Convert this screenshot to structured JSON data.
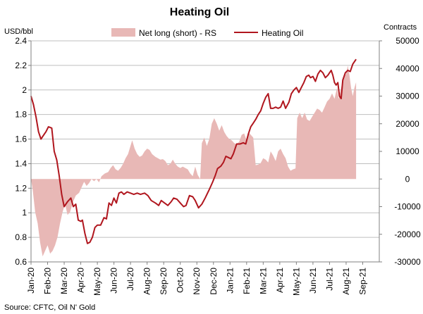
{
  "chart_data": {
    "type": "line+area",
    "title": "Heating Oil",
    "left_unit": "USD/bbl",
    "right_unit": "Contracts",
    "source": "Source: CFTC, Oil N' Gold",
    "legend": {
      "area_label": "Net long (short) - RS",
      "line_label": "Heating Oil"
    },
    "colors": {
      "area": "#e8b8b6",
      "line": "#b0161e",
      "grid": "#bfbfbf",
      "axis": "#808080"
    },
    "left_axis": {
      "min": 0.6,
      "max": 2.4,
      "step": 0.2,
      "tick_labels": [
        "0.6",
        "0.8",
        "1",
        "1.2",
        "1.4",
        "1.6",
        "1.8",
        "2",
        "2.2",
        "2.4"
      ]
    },
    "right_axis": {
      "min": -30000,
      "max": 50000,
      "step": 10000,
      "tick_labels": [
        "-30000",
        "-20000",
        "-10000",
        "0",
        "10000",
        "20000",
        "30000",
        "40000",
        "50000"
      ]
    },
    "x_axis": {
      "start": "2020-01-01",
      "end": "2021-09-30",
      "tick_labels": [
        "Jan-20",
        "Feb-20",
        "Mar-20",
        "Apr-20",
        "May-20",
        "Jun-20",
        "Jul-20",
        "Aug-20",
        "Sep-20",
        "Oct-20",
        "Nov-20",
        "Dec-20",
        "Jan-21",
        "Feb-21",
        "Mar-21",
        "Apr-21",
        "May-21",
        "Jun-21",
        "Jul-21",
        "Aug-21",
        "Sep-21"
      ]
    },
    "series": [
      {
        "name": "Heating Oil",
        "axis": "left",
        "kind": "line",
        "points": [
          [
            0.0,
            1.95
          ],
          [
            0.15,
            1.88
          ],
          [
            0.3,
            1.78
          ],
          [
            0.45,
            1.66
          ],
          [
            0.6,
            1.6
          ],
          [
            0.75,
            1.63
          ],
          [
            0.9,
            1.66
          ],
          [
            1.05,
            1.7
          ],
          [
            1.25,
            1.69
          ],
          [
            1.4,
            1.5
          ],
          [
            1.55,
            1.43
          ],
          [
            1.7,
            1.3
          ],
          [
            1.85,
            1.15
          ],
          [
            2.0,
            1.05
          ],
          [
            2.2,
            1.09
          ],
          [
            2.4,
            1.12
          ],
          [
            2.55,
            1.05
          ],
          [
            2.7,
            1.07
          ],
          [
            2.85,
            0.94
          ],
          [
            3.0,
            0.93
          ],
          [
            3.1,
            0.94
          ],
          [
            3.25,
            0.83
          ],
          [
            3.4,
            0.75
          ],
          [
            3.55,
            0.76
          ],
          [
            3.7,
            0.8
          ],
          [
            3.85,
            0.88
          ],
          [
            4.0,
            0.9
          ],
          [
            4.2,
            0.9
          ],
          [
            4.4,
            0.96
          ],
          [
            4.55,
            0.95
          ],
          [
            4.7,
            1.08
          ],
          [
            4.85,
            1.06
          ],
          [
            5.0,
            1.12
          ],
          [
            5.15,
            1.08
          ],
          [
            5.3,
            1.16
          ],
          [
            5.45,
            1.17
          ],
          [
            5.6,
            1.15
          ],
          [
            5.8,
            1.17
          ],
          [
            6.0,
            1.16
          ],
          [
            6.2,
            1.15
          ],
          [
            6.4,
            1.16
          ],
          [
            6.6,
            1.15
          ],
          [
            6.85,
            1.16
          ],
          [
            7.05,
            1.14
          ],
          [
            7.25,
            1.1
          ],
          [
            7.5,
            1.08
          ],
          [
            7.7,
            1.06
          ],
          [
            7.85,
            1.1
          ],
          [
            8.05,
            1.08
          ],
          [
            8.25,
            1.06
          ],
          [
            8.45,
            1.09
          ],
          [
            8.6,
            1.12
          ],
          [
            8.8,
            1.11
          ],
          [
            9.0,
            1.08
          ],
          [
            9.2,
            1.05
          ],
          [
            9.35,
            1.06
          ],
          [
            9.55,
            1.14
          ],
          [
            9.75,
            1.13
          ],
          [
            9.9,
            1.1
          ],
          [
            10.1,
            1.04
          ],
          [
            10.3,
            1.07
          ],
          [
            10.5,
            1.12
          ],
          [
            10.75,
            1.19
          ],
          [
            10.95,
            1.25
          ],
          [
            11.1,
            1.3
          ],
          [
            11.25,
            1.36
          ],
          [
            11.45,
            1.38
          ],
          [
            11.6,
            1.41
          ],
          [
            11.75,
            1.46
          ],
          [
            11.9,
            1.45
          ],
          [
            12.05,
            1.44
          ],
          [
            12.2,
            1.48
          ],
          [
            12.4,
            1.56
          ],
          [
            12.6,
            1.56
          ],
          [
            12.8,
            1.57
          ],
          [
            12.95,
            1.56
          ],
          [
            13.1,
            1.64
          ],
          [
            13.25,
            1.7
          ],
          [
            13.4,
            1.73
          ],
          [
            13.55,
            1.76
          ],
          [
            13.7,
            1.8
          ],
          [
            13.85,
            1.83
          ],
          [
            14.0,
            1.89
          ],
          [
            14.15,
            1.94
          ],
          [
            14.3,
            1.97
          ],
          [
            14.45,
            1.85
          ],
          [
            14.6,
            1.85
          ],
          [
            14.75,
            1.86
          ],
          [
            14.9,
            1.85
          ],
          [
            15.05,
            1.86
          ],
          [
            15.2,
            1.91
          ],
          [
            15.35,
            1.85
          ],
          [
            15.55,
            1.9
          ],
          [
            15.7,
            1.97
          ],
          [
            15.85,
            2.0
          ],
          [
            16.0,
            2.02
          ],
          [
            16.15,
            1.98
          ],
          [
            16.3,
            2.02
          ],
          [
            16.45,
            2.06
          ],
          [
            16.6,
            2.11
          ],
          [
            16.75,
            2.12
          ],
          [
            16.85,
            2.1
          ],
          [
            17.0,
            2.11
          ],
          [
            17.15,
            2.07
          ],
          [
            17.3,
            2.13
          ],
          [
            17.45,
            2.16
          ],
          [
            17.6,
            2.14
          ],
          [
            17.75,
            2.1
          ],
          [
            17.9,
            2.12
          ],
          [
            18.0,
            2.14
          ],
          [
            18.1,
            2.16
          ],
          [
            18.2,
            2.12
          ],
          [
            18.3,
            2.06
          ],
          [
            18.4,
            2.04
          ],
          [
            18.5,
            2.06
          ],
          [
            18.6,
            1.95
          ],
          [
            18.7,
            1.93
          ],
          [
            18.8,
            2.08
          ],
          [
            18.95,
            2.14
          ],
          [
            19.1,
            2.16
          ],
          [
            19.25,
            2.15
          ],
          [
            19.4,
            2.21
          ],
          [
            19.55,
            2.24
          ],
          [
            19.6,
            2.25
          ]
        ]
      },
      {
        "name": "Net long (short) - RS",
        "axis": "right",
        "kind": "area",
        "points": [
          [
            0.0,
            0
          ],
          [
            0.1,
            -4000
          ],
          [
            0.25,
            -12000
          ],
          [
            0.4,
            -16000
          ],
          [
            0.55,
            -23000
          ],
          [
            0.7,
            -28000
          ],
          [
            0.85,
            -26000
          ],
          [
            1.0,
            -24000
          ],
          [
            1.15,
            -27000
          ],
          [
            1.3,
            -26000
          ],
          [
            1.45,
            -24000
          ],
          [
            1.6,
            -21000
          ],
          [
            1.75,
            -16000
          ],
          [
            1.9,
            -12000
          ],
          [
            2.05,
            -9000
          ],
          [
            2.2,
            -13000
          ],
          [
            2.35,
            -12000
          ],
          [
            2.55,
            -8000
          ],
          [
            2.7,
            -6000
          ],
          [
            2.9,
            -5000
          ],
          [
            3.05,
            -3000
          ],
          [
            3.2,
            -1000
          ],
          [
            3.35,
            -2500
          ],
          [
            3.5,
            -1500
          ],
          [
            3.65,
            0
          ],
          [
            3.8,
            -800
          ],
          [
            3.95,
            0
          ],
          [
            4.1,
            -1200
          ],
          [
            4.25,
            1000
          ],
          [
            4.45,
            2000
          ],
          [
            4.65,
            2500
          ],
          [
            4.8,
            4000
          ],
          [
            4.95,
            5000
          ],
          [
            5.1,
            3500
          ],
          [
            5.25,
            3000
          ],
          [
            5.4,
            4000
          ],
          [
            5.55,
            5500
          ],
          [
            5.7,
            7500
          ],
          [
            5.85,
            9000
          ],
          [
            6.0,
            12000
          ],
          [
            6.1,
            14000
          ],
          [
            6.25,
            11000
          ],
          [
            6.4,
            9000
          ],
          [
            6.55,
            8000
          ],
          [
            6.7,
            8500
          ],
          [
            6.85,
            10000
          ],
          [
            7.0,
            11000
          ],
          [
            7.15,
            10500
          ],
          [
            7.3,
            9000
          ],
          [
            7.5,
            8000
          ],
          [
            7.65,
            7500
          ],
          [
            7.8,
            7000
          ],
          [
            7.95,
            7200
          ],
          [
            8.1,
            6500
          ],
          [
            8.25,
            5000
          ],
          [
            8.4,
            5500
          ],
          [
            8.55,
            7000
          ],
          [
            8.7,
            5500
          ],
          [
            8.85,
            4500
          ],
          [
            9.0,
            4000
          ],
          [
            9.15,
            4500
          ],
          [
            9.3,
            4000
          ],
          [
            9.45,
            3500
          ],
          [
            9.6,
            2000
          ],
          [
            9.75,
            1000
          ],
          [
            9.9,
            4500
          ],
          [
            10.05,
            1500
          ],
          [
            10.2,
            0
          ],
          [
            10.3,
            13000
          ],
          [
            10.45,
            15000
          ],
          [
            10.6,
            12000
          ],
          [
            10.75,
            14500
          ],
          [
            10.9,
            20000
          ],
          [
            11.05,
            22000
          ],
          [
            11.2,
            20000
          ],
          [
            11.35,
            17500
          ],
          [
            11.5,
            19500
          ],
          [
            11.65,
            17000
          ],
          [
            11.8,
            15500
          ],
          [
            11.95,
            14500
          ],
          [
            12.1,
            14000
          ],
          [
            12.25,
            13000
          ],
          [
            12.4,
            12500
          ],
          [
            12.55,
            13500
          ],
          [
            12.7,
            16000
          ],
          [
            12.85,
            16500
          ],
          [
            13.0,
            14000
          ],
          [
            13.1,
            17000
          ],
          [
            13.25,
            16000
          ],
          [
            13.4,
            15000
          ],
          [
            13.55,
            5000
          ],
          [
            13.7,
            5200
          ],
          [
            13.85,
            5800
          ],
          [
            14.0,
            7500
          ],
          [
            14.15,
            7000
          ],
          [
            14.3,
            6000
          ],
          [
            14.45,
            10000
          ],
          [
            14.6,
            8500
          ],
          [
            14.75,
            6500
          ],
          [
            14.9,
            10000
          ],
          [
            15.05,
            11000
          ],
          [
            15.2,
            9000
          ],
          [
            15.35,
            7500
          ],
          [
            15.5,
            4500
          ],
          [
            15.65,
            3000
          ],
          [
            15.8,
            3500
          ],
          [
            15.95,
            3800
          ],
          [
            16.05,
            22000
          ],
          [
            16.2,
            24000
          ],
          [
            16.35,
            22000
          ],
          [
            16.5,
            24000
          ],
          [
            16.65,
            21500
          ],
          [
            16.8,
            21000
          ],
          [
            16.95,
            22500
          ],
          [
            17.1,
            24000
          ],
          [
            17.25,
            25500
          ],
          [
            17.4,
            25000
          ],
          [
            17.55,
            24000
          ],
          [
            17.7,
            26000
          ],
          [
            17.85,
            28000
          ],
          [
            18.0,
            29000
          ],
          [
            18.15,
            31000
          ],
          [
            18.3,
            29000
          ],
          [
            18.45,
            33000
          ],
          [
            18.55,
            29000
          ],
          [
            18.7,
            33000
          ],
          [
            18.85,
            37000
          ],
          [
            19.0,
            38000
          ],
          [
            19.1,
            41000
          ],
          [
            19.2,
            37500
          ],
          [
            19.3,
            33000
          ],
          [
            19.4,
            30000
          ],
          [
            19.5,
            33000
          ],
          [
            19.6,
            35000
          ]
        ]
      }
    ]
  }
}
